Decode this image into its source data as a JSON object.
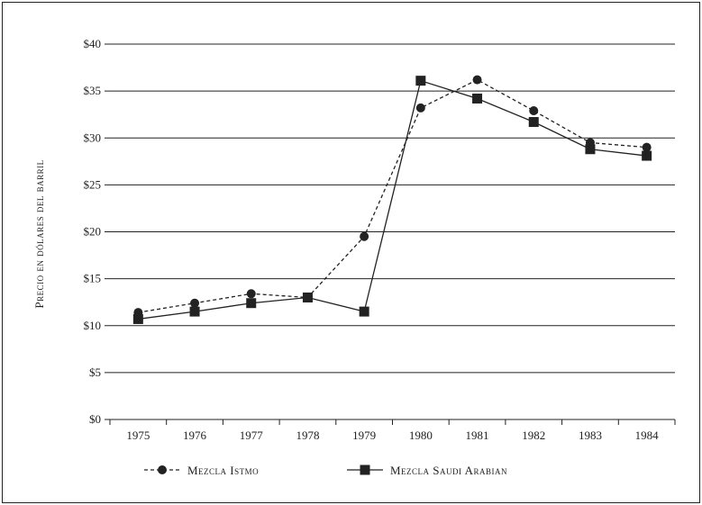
{
  "chart_data": {
    "type": "line",
    "title": "",
    "xlabel": "",
    "ylabel": "Precio en dólares del barril",
    "categories": [
      "1975",
      "1976",
      "1977",
      "1978",
      "1979",
      "1980",
      "1981",
      "1982",
      "1983",
      "1984"
    ],
    "y_ticks": [
      "$0",
      "$5",
      "$10",
      "$15",
      "$20",
      "$25",
      "$30",
      "$35",
      "$40"
    ],
    "ylim": [
      0,
      40
    ],
    "grid": "horizontal",
    "legend_position": "bottom",
    "series": [
      {
        "name": "Mezcla Istmo",
        "marker": "circle",
        "line_style": "dashed",
        "color": "#222222",
        "values": [
          11.4,
          12.4,
          13.4,
          13.0,
          19.5,
          33.2,
          36.2,
          32.9,
          29.5,
          29.0
        ]
      },
      {
        "name": "Mezcla Saudi Arabian",
        "marker": "square",
        "line_style": "solid",
        "color": "#222222",
        "values": [
          10.7,
          11.5,
          12.4,
          13.0,
          11.5,
          36.1,
          34.2,
          31.7,
          28.8,
          28.1
        ]
      }
    ]
  }
}
